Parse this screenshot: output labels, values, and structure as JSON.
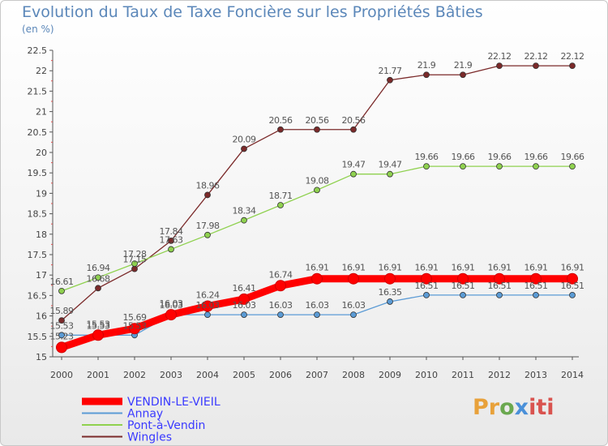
{
  "chart_data": {
    "type": "line",
    "title": "Evolution du Taux de Taxe Foncière sur les Propriétés Bâties",
    "subtitle": "(en %)",
    "x": [
      "2000",
      "2001",
      "2002",
      "2003",
      "2004",
      "2005",
      "2006",
      "2007",
      "2008",
      "2009",
      "2010",
      "2011",
      "2012",
      "2013",
      "2014"
    ],
    "ylim": [
      15,
      22.5
    ],
    "yticks": [
      "15",
      "15.5",
      "16",
      "16.5",
      "17",
      "17.5",
      "18",
      "18.5",
      "19",
      "19.5",
      "20",
      "20.5",
      "21",
      "21.5",
      "22",
      "22.5"
    ],
    "grid": false,
    "legend_position": "bottom-left",
    "series": [
      {
        "name": "VENDIN-LE-VIEIL",
        "color": "#ff0000",
        "values": [
          15.23,
          15.53,
          15.69,
          16.03,
          16.24,
          16.41,
          16.74,
          16.91,
          16.91,
          16.91,
          16.91,
          16.91,
          16.91,
          16.91,
          16.91
        ]
      },
      {
        "name": "Annay",
        "color": "#5b9bd5",
        "values": [
          15.53,
          15.53,
          15.53,
          16.03,
          16.03,
          16.03,
          16.03,
          16.03,
          16.03,
          16.35,
          16.51,
          16.51,
          16.51,
          16.51,
          16.51
        ]
      },
      {
        "name": "Pont-à-Vendin",
        "color": "#8fd14f",
        "values": [
          16.61,
          16.94,
          17.28,
          17.63,
          17.98,
          18.34,
          18.71,
          19.08,
          19.47,
          19.47,
          19.66,
          19.66,
          19.66,
          19.66,
          19.66
        ]
      },
      {
        "name": "Wingles",
        "color": "#7b2a2a",
        "values": [
          15.89,
          16.68,
          17.15,
          17.84,
          18.96,
          20.09,
          20.56,
          20.56,
          20.56,
          21.77,
          21.9,
          21.9,
          22.12,
          22.12,
          22.12
        ]
      }
    ],
    "point_labels": [
      [
        "15.23",
        "15.53",
        "15.69",
        "16.03",
        "16.24",
        "16.41",
        "16.74",
        "16.91",
        "16.91",
        "16.91",
        "16.91",
        "16.91",
        "16.91",
        "16.91",
        "16.91"
      ],
      [
        "15.53",
        "15.53",
        "15.53",
        "16.03",
        "16.03",
        "16.03",
        "16.03",
        "16.03",
        "16.03",
        "16.35",
        "16.51",
        "16.51",
        "16.51",
        "16.51",
        "16.51"
      ],
      [
        "16.61",
        "16.94",
        "17.28",
        "17.63",
        "17.98",
        "18.34",
        "18.71",
        "19.08",
        "19.47",
        "19.47",
        "19.66",
        "19.66",
        "19.66",
        "19.66",
        "19.66"
      ],
      [
        "15.89",
        "16.68",
        "17.15",
        "17.84",
        "18.96",
        "20.09",
        "20.56",
        "20.56",
        "20.56",
        "21.77",
        "21.9",
        "21.9",
        "22.12",
        "22.12",
        "22.12"
      ]
    ]
  },
  "logo": {
    "p1": "Pr",
    "p2": "o",
    "p3": "x",
    "p4": "iti"
  }
}
